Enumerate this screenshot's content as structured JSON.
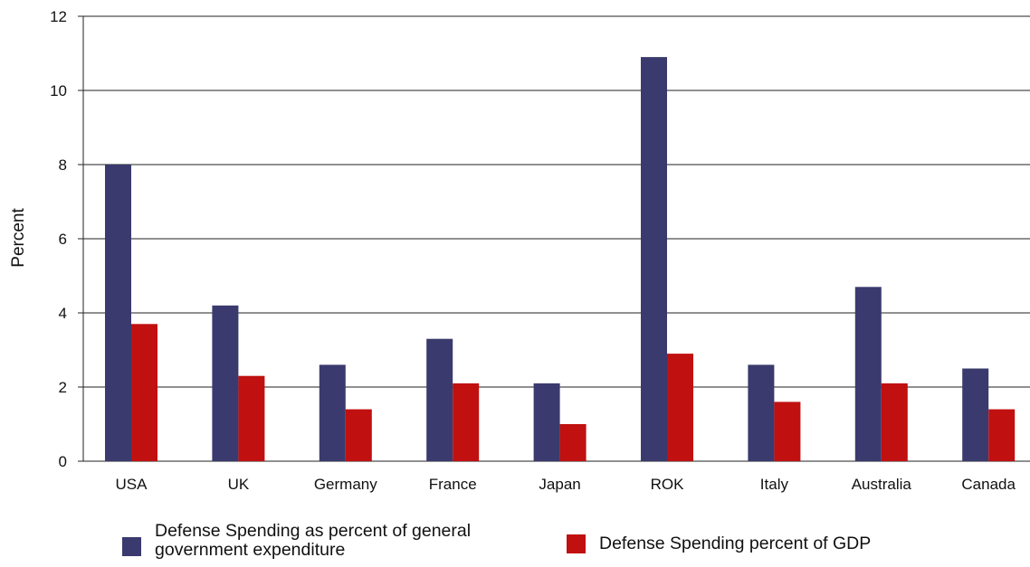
{
  "chart_data": {
    "type": "bar",
    "categories": [
      "USA",
      "UK",
      "Germany",
      "France",
      "Japan",
      "ROK",
      "Italy",
      "Australia",
      "Canada"
    ],
    "series": [
      {
        "name": "Defense Spending as percent of general government expenditure",
        "color": "#3a3a6e",
        "values": [
          8.0,
          4.2,
          2.6,
          3.3,
          2.1,
          10.9,
          2.6,
          4.7,
          2.5
        ]
      },
      {
        "name": "Defense Spending percent of GDP",
        "color": "#c01010",
        "values": [
          3.7,
          2.3,
          1.4,
          2.1,
          1.0,
          2.9,
          1.6,
          2.1,
          1.4
        ]
      }
    ],
    "xlabel": "",
    "ylabel": "Percent",
    "ylim": [
      0,
      12
    ],
    "yticks": [
      0,
      2,
      4,
      6,
      8,
      10,
      12
    ],
    "grid": true,
    "legend_position": "bottom"
  }
}
